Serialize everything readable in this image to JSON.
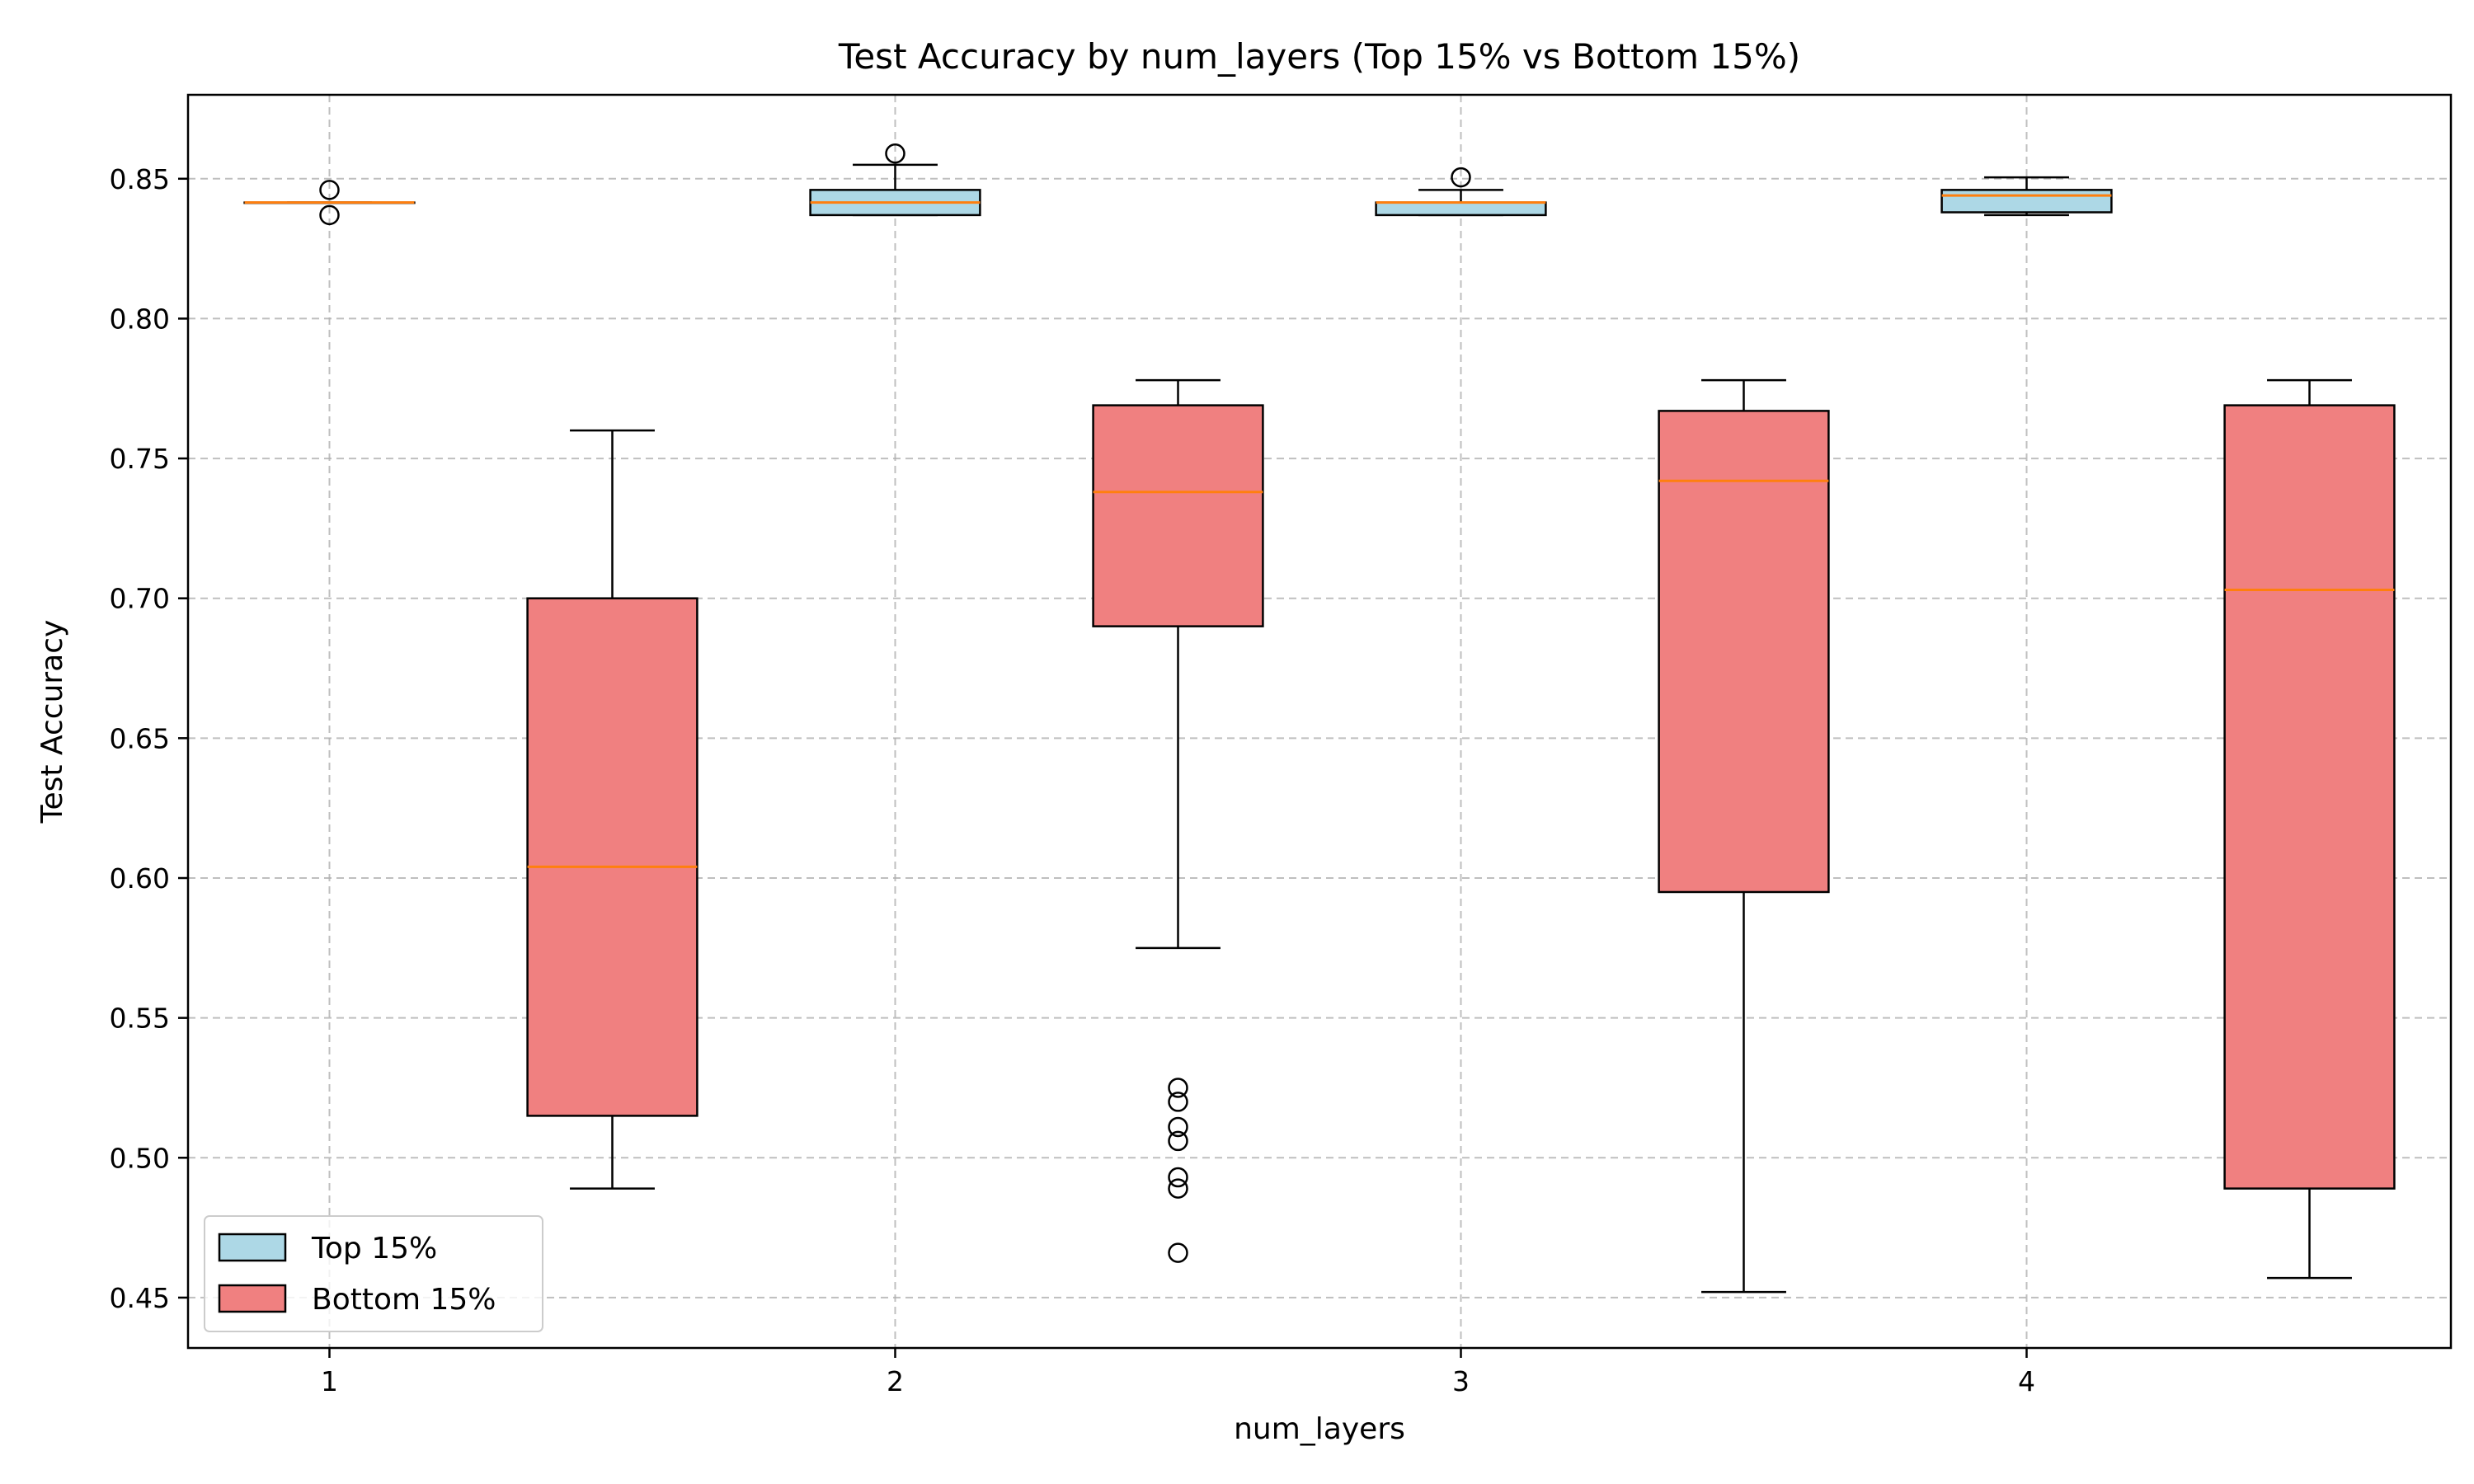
{
  "chart_data": {
    "type": "box",
    "title": "Test Accuracy by num_layers (Top 15% vs Bottom 15%)",
    "xlabel": "num_layers",
    "ylabel": "Test Accuracy",
    "x_ticks": [
      "1",
      "2",
      "3",
      "4"
    ],
    "y_ticks": [
      "0.45",
      "0.50",
      "0.55",
      "0.60",
      "0.65",
      "0.70",
      "0.75",
      "0.80",
      "0.85"
    ],
    "ylim": [
      0.432,
      0.88
    ],
    "xlim": [
      0.75,
      4.75
    ],
    "grid": true,
    "legend_position": "lower-left",
    "series": [
      {
        "name": "Top 15%",
        "color": "#add8e6",
        "boxes": [
          {
            "pos": 1,
            "whisker_low": 0.8415,
            "q1": 0.8415,
            "median": 0.8415,
            "q3": 0.8415,
            "whisker_high": 0.8415,
            "outliers": [
              0.846,
              0.837
            ]
          },
          {
            "pos": 2,
            "whisker_low": 0.837,
            "q1": 0.837,
            "median": 0.8415,
            "q3": 0.846,
            "whisker_high": 0.855,
            "outliers": [
              0.859
            ]
          },
          {
            "pos": 3,
            "whisker_low": 0.837,
            "q1": 0.837,
            "median": 0.8415,
            "q3": 0.8415,
            "whisker_high": 0.846,
            "outliers": [
              0.8505
            ]
          },
          {
            "pos": 4,
            "whisker_low": 0.837,
            "q1": 0.838,
            "median": 0.844,
            "q3": 0.846,
            "whisker_high": 0.8505,
            "outliers": []
          }
        ]
      },
      {
        "name": "Bottom 15%",
        "color": "#f08080",
        "boxes": [
          {
            "pos": 1.5,
            "whisker_low": 0.489,
            "q1": 0.515,
            "median": 0.604,
            "q3": 0.7,
            "whisker_high": 0.76,
            "outliers": []
          },
          {
            "pos": 2.5,
            "whisker_low": 0.575,
            "q1": 0.69,
            "median": 0.738,
            "q3": 0.769,
            "whisker_high": 0.778,
            "outliers": [
              0.525,
              0.52,
              0.511,
              0.506,
              0.493,
              0.489,
              0.466
            ]
          },
          {
            "pos": 3.5,
            "whisker_low": 0.452,
            "q1": 0.595,
            "median": 0.742,
            "q3": 0.767,
            "whisker_high": 0.778,
            "outliers": []
          },
          {
            "pos": 4.5,
            "whisker_low": 0.457,
            "q1": 0.489,
            "median": 0.703,
            "q3": 0.769,
            "whisker_high": 0.778,
            "outliers": []
          }
        ]
      }
    ],
    "median_color": "#ff7f0e"
  }
}
